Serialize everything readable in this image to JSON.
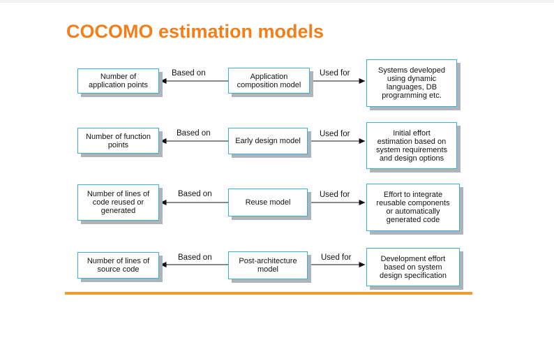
{
  "title": "COCOMO estimation models",
  "colors": {
    "title": "#f07f1c",
    "box_border": "#35aee0",
    "box_shadow": "#aeb4b9",
    "bottom_rule": "#f29a2e"
  },
  "rows": [
    {
      "basis": "Number of\napplication points",
      "based_on_label": "Based on",
      "model": "Application\ncomposition model",
      "used_for_label": "Used for",
      "usage": "Systems developed\nusing dynamic\nlanguages, DB\nprogramming etc."
    },
    {
      "basis": "Number of function\npoints",
      "based_on_label": "Based on",
      "model": "Early design model",
      "used_for_label": "Used for",
      "usage": "Initial effort\nestimation based on\nsystem requirements\nand design options"
    },
    {
      "basis": "Number of lines of\ncode reused or\ngenerated",
      "based_on_label": "Based on",
      "model": "Reuse model",
      "used_for_label": "Used for",
      "usage": "Effort to integrate\nreusable components\nor automatically\ngenerated code"
    },
    {
      "basis": "Number of lines of\nsource code",
      "based_on_label": "Based on",
      "model": "Post-architecture\nmodel",
      "used_for_label": "Used for",
      "usage": "Development effort\nbased on system\ndesign specification"
    }
  ]
}
